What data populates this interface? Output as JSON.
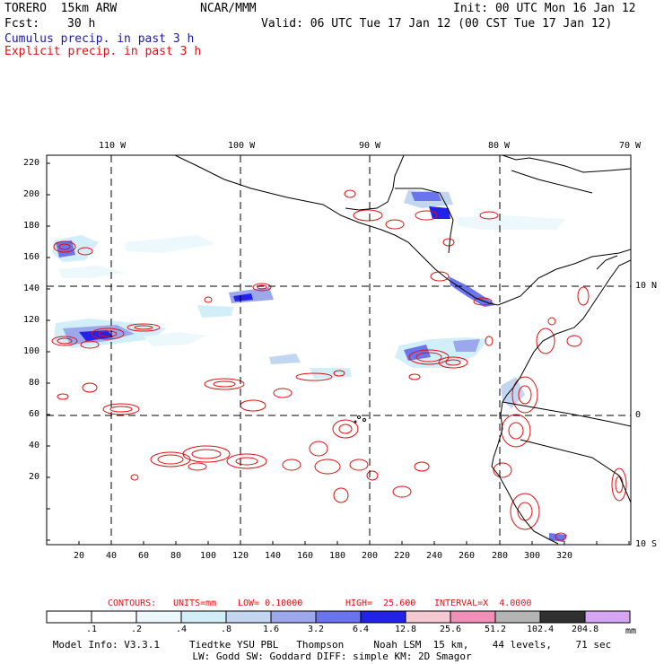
{
  "header": {
    "model": "TORERO  15km ARW",
    "org": "NCAR/MMM",
    "init": "Init: 00 UTC Mon 16 Jan 12",
    "fcst_label": "Fcst:",
    "fcst_value": "30 h",
    "valid": "Valid: 06 UTC Tue 17 Jan 12 (00 CST Tue 17 Jan 12)",
    "legend_cumulus": "Cumulus precip. in past 3 h",
    "legend_explicit": "Explicit precip. in past 3 h"
  },
  "map": {
    "top_lon_labels": [
      "110 W",
      "100 W",
      "90 W",
      "80 W",
      "70 W"
    ],
    "right_lat_labels": [
      "10 N",
      "0",
      "10 S"
    ],
    "y_ticks": [
      "220",
      "200",
      "180",
      "160",
      "140",
      "120",
      "100",
      "80",
      "60",
      "40",
      "20"
    ],
    "x_ticks": [
      "20",
      "40",
      "60",
      "80",
      "100",
      "120",
      "140",
      "160",
      "180",
      "200",
      "220",
      "240",
      "260",
      "280",
      "300",
      "320"
    ],
    "colors": {
      "coast": "#000000",
      "cumulus": "#3344ee",
      "explicit": "#e01010",
      "grid": "#000000"
    }
  },
  "contours": {
    "label": "CONTOURS:",
    "units": "UNITS=mm",
    "low": "LOW= 0.10000",
    "high": "HIGH=  25.600",
    "interval": "INTERVAL=X  4.0000"
  },
  "colorbar": {
    "labels": [
      ".1",
      ".2",
      ".4",
      ".8",
      "1.6",
      "3.2",
      "6.4",
      "12.8",
      "25.6",
      "51.2",
      "102.4",
      "204.8"
    ],
    "units": "mm",
    "colors": [
      "#ffffff",
      "#ffffff",
      "#ecf8fc",
      "#d2eef8",
      "#c2d6f2",
      "#9ca8ee",
      "#6a74ec",
      "#2222e8",
      "#f4c8d0",
      "#f090b8",
      "#b4b4b4",
      "#303030",
      "#d6a6f4"
    ]
  },
  "model_info": {
    "line1": "Model Info: V3.3.1     Tiedtke YSU PBL   Thompson     Noah LSM  15 km,    44 levels,    71 sec",
    "line2": "LW: Godd SW: Goddard DIFF: simple KM: 2D Smagor"
  }
}
